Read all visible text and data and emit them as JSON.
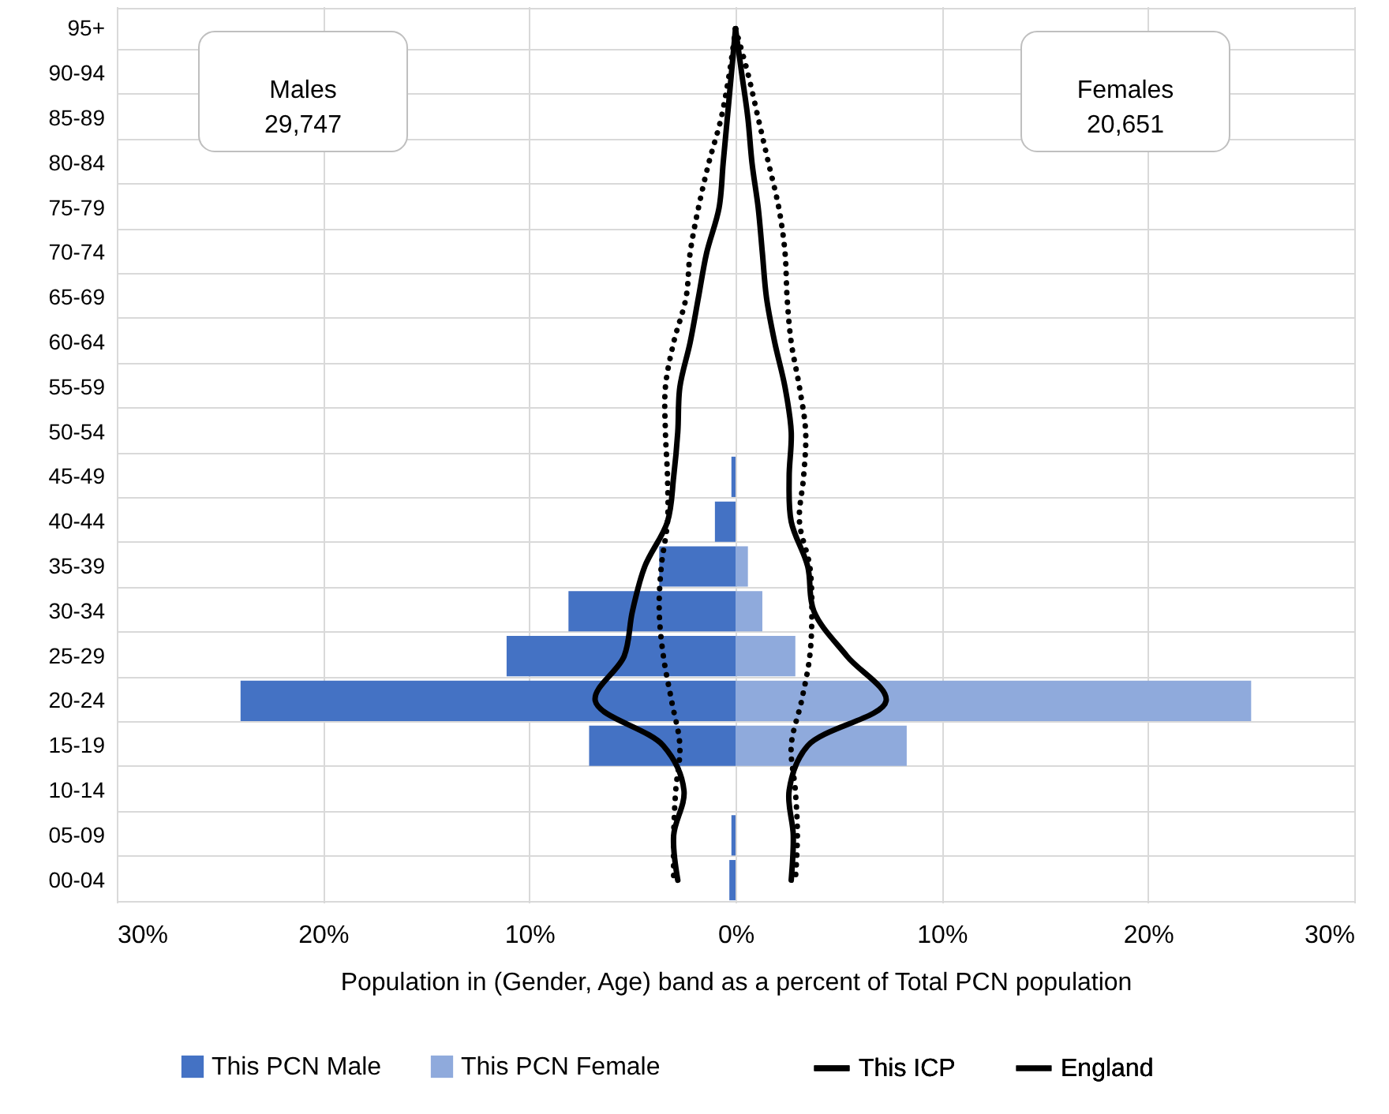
{
  "chart_data": {
    "type": "bar",
    "orientation": "horizontal",
    "categories": [
      "95+",
      "90-94",
      "85-89",
      "80-84",
      "75-79",
      "70-74",
      "65-69",
      "60-64",
      "55-59",
      "50-54",
      "45-49",
      "40-44",
      "35-39",
      "30-34",
      "25-29",
      "20-24",
      "15-19",
      "10-14",
      "05-09",
      "00-04"
    ],
    "series": [
      {
        "name": "This PCN Male",
        "color": "#4472c4",
        "values": [
          0,
          0,
          0,
          0,
          0,
          0,
          0,
          0,
          0,
          0,
          -0.2,
          -1.0,
          -3.7,
          -8.1,
          -11.1,
          -24.0,
          -7.1,
          0,
          -0.2,
          -0.3
        ]
      },
      {
        "name": "This PCN Female",
        "color": "#8faadc",
        "values": [
          0,
          0,
          0,
          0,
          0,
          0,
          0,
          0,
          0,
          0,
          0,
          0,
          0.6,
          1.3,
          2.9,
          25.0,
          8.3,
          0,
          0,
          0
        ]
      },
      {
        "name": "This ICP",
        "type": "line",
        "color": "#000000",
        "line_style": "solid",
        "values": [
          0.0,
          -0.2,
          -0.4,
          -0.6,
          -0.8,
          -1.4,
          -1.8,
          -2.2,
          -2.7,
          -2.8,
          -3.0,
          -3.3,
          -4.4,
          -5.0,
          -5.4,
          -6.8,
          -3.5,
          -2.5,
          -3.0,
          -2.8
        ]
      },
      {
        "type": "line",
        "color": "#000000",
        "line_style": "solid",
        "values": [
          0.0,
          0.3,
          0.6,
          0.8,
          1.1,
          1.3,
          1.5,
          1.9,
          2.4,
          2.7,
          2.6,
          2.7,
          3.5,
          3.8,
          5.4,
          7.3,
          3.5,
          2.6,
          2.8,
          2.7
        ]
      },
      {
        "name": "England",
        "type": "line",
        "color": "#000000",
        "line_style": "dotted",
        "values": [
          0.0,
          -0.3,
          -0.7,
          -1.3,
          -1.8,
          -2.2,
          -2.4,
          -3.0,
          -3.4,
          -3.4,
          -3.3,
          -3.3,
          -3.6,
          -3.7,
          -3.5,
          -3.1,
          -2.7,
          -2.9,
          -3.0,
          -3.0
        ]
      },
      {
        "type": "line",
        "color": "#000000",
        "line_style": "dotted",
        "values": [
          0.0,
          0.6,
          1.1,
          1.6,
          2.1,
          2.4,
          2.5,
          2.7,
          3.1,
          3.4,
          3.3,
          3.1,
          3.6,
          3.7,
          3.6,
          3.2,
          2.7,
          2.9,
          3.0,
          2.9
        ]
      }
    ],
    "xlim": [
      -30,
      30
    ],
    "xticks": [
      {
        "value": -30,
        "label": "30%"
      },
      {
        "value": -20,
        "label": "20%"
      },
      {
        "value": -10,
        "label": "10%"
      },
      {
        "value": 0,
        "label": "0%"
      },
      {
        "value": 10,
        "label": "10%"
      },
      {
        "value": 20,
        "label": "20%"
      },
      {
        "value": 30,
        "label": "30%"
      }
    ],
    "xlabel": "Population in (Gender, Age) band as a percent of Total PCN population",
    "annotations": [
      "Males\n29,747",
      "Females\n20,651"
    ],
    "grid": true,
    "legend": "bottom"
  }
}
